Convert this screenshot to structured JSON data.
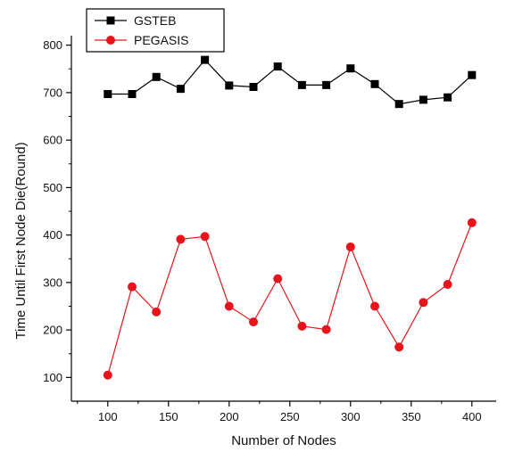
{
  "chart_data": {
    "type": "line",
    "xlabel": "Number of Nodes",
    "ylabel": "Time Until First Node Die(Round)",
    "xlim": [
      70,
      420
    ],
    "ylim": [
      50,
      820
    ],
    "x_ticks": [
      "100",
      "150",
      "200",
      "250",
      "300",
      "350",
      "400"
    ],
    "y_ticks": [
      "100",
      "200",
      "300",
      "400",
      "500",
      "600",
      "700",
      "800"
    ],
    "grid": false,
    "legend_position": "top-left",
    "x": [
      100,
      120,
      140,
      160,
      180,
      200,
      220,
      240,
      260,
      280,
      300,
      320,
      340,
      360,
      380,
      400
    ],
    "series": [
      {
        "name": "GSTEB",
        "color": "#000000",
        "marker": "square",
        "values": [
          697,
          697,
          733,
          708,
          769,
          715,
          712,
          755,
          716,
          716,
          751,
          718,
          676,
          685,
          690,
          737
        ]
      },
      {
        "name": "PEGASIS",
        "color": "#e8141b",
        "marker": "circle",
        "values": [
          105,
          291,
          238,
          391,
          397,
          250,
          217,
          308,
          208,
          201,
          375,
          250,
          164,
          258,
          296,
          426
        ]
      }
    ]
  }
}
